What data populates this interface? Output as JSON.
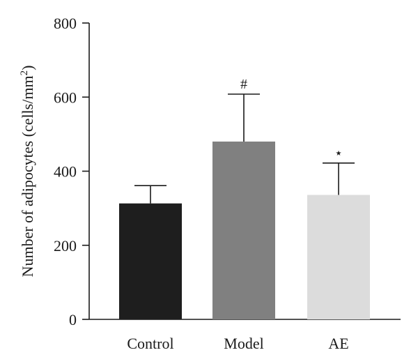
{
  "chart_data": {
    "type": "bar",
    "title": "",
    "xlabel": "",
    "ylabel_main": "Number of adipocytes (cells/mm",
    "ylabel_sup": "2",
    "ylabel_close": ")",
    "ylim": [
      0,
      800
    ],
    "yticks": [
      0,
      200,
      400,
      600,
      800
    ],
    "categories": [
      "Control",
      "Model",
      "AE"
    ],
    "values": [
      313,
      480,
      336
    ],
    "errors": [
      48,
      128,
      86
    ],
    "colors": [
      "#1e1e1e",
      "#808080",
      "#dcdcdc"
    ],
    "annotations": [
      "",
      "#",
      "⋆"
    ],
    "grid": false,
    "legend": "none"
  }
}
